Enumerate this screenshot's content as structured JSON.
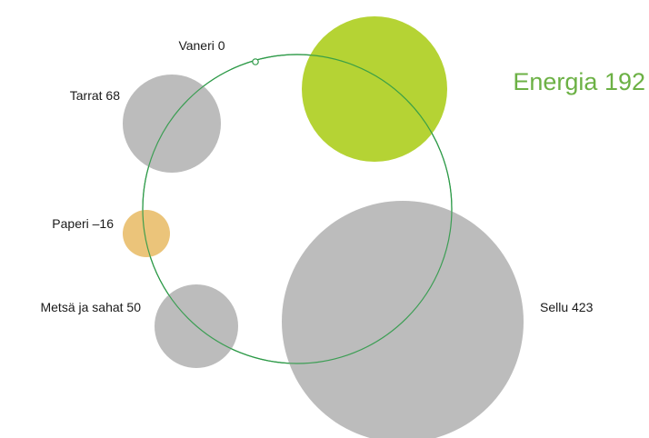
{
  "chart_data": {
    "type": "bubble",
    "series": [
      {
        "name": "Vaneri",
        "value": 0,
        "label": "Vaneri 0",
        "color": "#ffffff",
        "stroke": "#2e9a48"
      },
      {
        "name": "Tarrat",
        "value": 68,
        "label": "Tarrat 68",
        "color": "#bcbcbc"
      },
      {
        "name": "Paperi",
        "value": -16,
        "label": "Paperi –16",
        "color": "#ebc47a"
      },
      {
        "name": "Metsä ja sahat",
        "value": 50,
        "label": "Metsä ja sahat 50",
        "color": "#bcbcbc"
      },
      {
        "name": "Energia",
        "value": 192,
        "label": "Energia 192",
        "color": "#b5d334",
        "label_color": "#6cb145"
      },
      {
        "name": "Sellu",
        "value": 423,
        "label": "Sellu 423",
        "color": "#bcbcbc"
      }
    ],
    "ring_color": "#2e9a48",
    "grid": false,
    "legend": "none"
  }
}
